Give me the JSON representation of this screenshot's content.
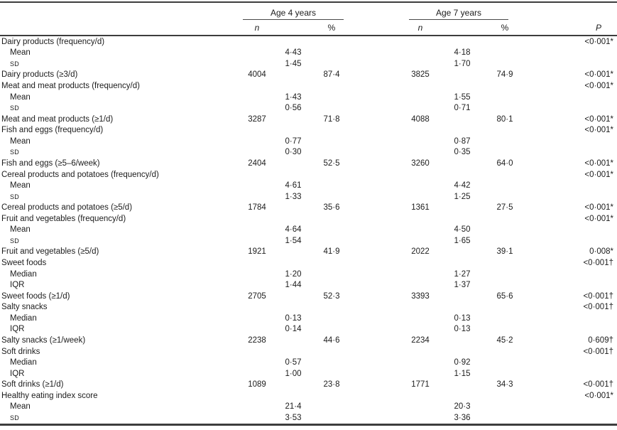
{
  "table": {
    "groups": [
      {
        "label": "Age 4 years",
        "n_header": "n",
        "pct_header": "%"
      },
      {
        "label": "Age 7 years",
        "n_header": "n",
        "pct_header": "%"
      }
    ],
    "p_header": "P",
    "rows": [
      {
        "label": "Dairy products (frequency/d)",
        "p": "<0·001*"
      },
      {
        "label": "Mean",
        "indent": 1,
        "s4": "4·43",
        "s7": "4·18"
      },
      {
        "label": "SD",
        "indent": 1,
        "sc": 1,
        "s4": "1·45",
        "s7": "1·70"
      },
      {
        "label": "Dairy products (≥3/d)",
        "n4": "4004",
        "p4": "87·4",
        "n7": "3825",
        "p7": "74·9",
        "p": "<0·001*"
      },
      {
        "label": "Meat and meat products (frequency/d)",
        "p": "<0·001*"
      },
      {
        "label": "Mean",
        "indent": 1,
        "s4": "1·43",
        "s7": "1·55"
      },
      {
        "label": "SD",
        "indent": 1,
        "sc": 1,
        "s4": "0·56",
        "s7": "0·71"
      },
      {
        "label": "Meat and meat products (≥1/d)",
        "n4": "3287",
        "p4": "71·8",
        "n7": "4088",
        "p7": "80·1",
        "p": "<0·001*"
      },
      {
        "label": "Fish and eggs (frequency/d)",
        "p": "<0·001*"
      },
      {
        "label": "Mean",
        "indent": 1,
        "s4": "0·77",
        "s7": "0·87"
      },
      {
        "label": "SD",
        "indent": 1,
        "sc": 1,
        "s4": "0·30",
        "s7": "0·35"
      },
      {
        "label": "Fish and eggs (≥5–6/week)",
        "n4": "2404",
        "p4": "52·5",
        "n7": "3260",
        "p7": "64·0",
        "p": "<0·001*"
      },
      {
        "label": "Cereal products and potatoes (frequency/d)",
        "p": "<0·001*"
      },
      {
        "label": "Mean",
        "indent": 1,
        "s4": "4·61",
        "s7": "4·42"
      },
      {
        "label": "SD",
        "indent": 1,
        "sc": 1,
        "s4": "1·33",
        "s7": "1·25"
      },
      {
        "label": "Cereal products and potatoes (≥5/d)",
        "n4": "1784",
        "p4": "35·6",
        "n7": "1361",
        "p7": "27·5",
        "p": "<0·001*"
      },
      {
        "label": "Fruit and vegetables (frequency/d)",
        "p": "<0·001*"
      },
      {
        "label": "Mean",
        "indent": 1,
        "s4": "4·64",
        "s7": "4·50"
      },
      {
        "label": "SD",
        "indent": 1,
        "sc": 1,
        "s4": "1·54",
        "s7": "1·65"
      },
      {
        "label": "Fruit and vegetables (≥5/d)",
        "n4": "1921",
        "p4": "41·9",
        "n7": "2022",
        "p7": "39·1",
        "p": "0·008*"
      },
      {
        "label": "Sweet foods",
        "p": "<0·001†"
      },
      {
        "label": "Median",
        "indent": 1,
        "s4": "1·20",
        "s7": "1·27"
      },
      {
        "label": "IQR",
        "indent": 1,
        "s4": "1·44",
        "s7": "1·37"
      },
      {
        "label": "Sweet foods (≥1/d)",
        "n4": "2705",
        "p4": "52·3",
        "n7": "3393",
        "p7": "65·6",
        "p": "<0·001†"
      },
      {
        "label": "Salty snacks",
        "p": "<0·001†"
      },
      {
        "label": "Median",
        "indent": 1,
        "s4": "0·13",
        "s7": "0·13"
      },
      {
        "label": "IQR",
        "indent": 1,
        "s4": "0·14",
        "s7": "0·13"
      },
      {
        "label": "Salty snacks (≥1/week)",
        "n4": "2238",
        "p4": "44·6",
        "n7": "2234",
        "p7": "45·2",
        "p": "0·609†"
      },
      {
        "label": "Soft drinks",
        "p": "<0·001†"
      },
      {
        "label": "Median",
        "indent": 1,
        "s4": "0·57",
        "s7": "0·92"
      },
      {
        "label": "IQR",
        "indent": 1,
        "s4": "1·00",
        "s7": "1·15"
      },
      {
        "label": "Soft drinks (≥1/d)",
        "n4": "1089",
        "p4": "23·8",
        "n7": "1771",
        "p7": "34·3",
        "p": "<0·001†"
      },
      {
        "label": "Healthy eating index score",
        "p": "<0·001*"
      },
      {
        "label": "Mean",
        "indent": 1,
        "s4": "21·4",
        "s7": "20·3"
      },
      {
        "label": "SD",
        "indent": 1,
        "sc": 1,
        "s4": "3·53",
        "s7": "3·36"
      }
    ]
  }
}
